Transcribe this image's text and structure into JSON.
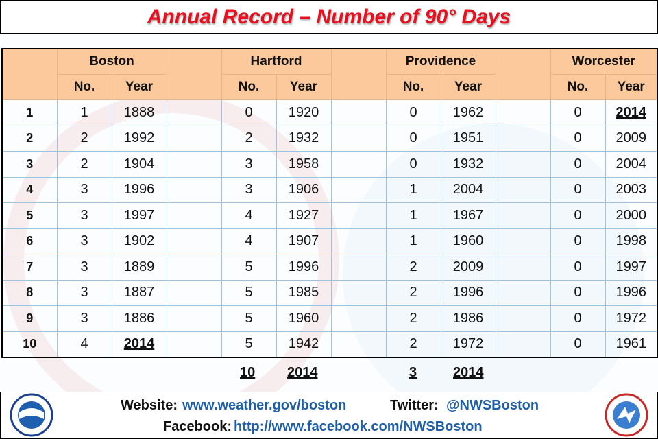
{
  "header": {
    "title": "Annual Record – Number of 90° Days"
  },
  "table": {
    "cities": [
      {
        "name": "Boston",
        "no_label": "No.",
        "year_label": "Year"
      },
      {
        "name": "Hartford",
        "no_label": "No.",
        "year_label": "Year"
      },
      {
        "name": "Providence",
        "no_label": "No.",
        "year_label": "Year"
      },
      {
        "name": "Worcester",
        "no_label": "No.",
        "year_label": "Year"
      }
    ],
    "rows": [
      [
        1,
        1,
        1888,
        0,
        1920,
        0,
        1962,
        0,
        2014
      ],
      [
        2,
        2,
        1992,
        2,
        1932,
        0,
        1951,
        0,
        2009
      ],
      [
        3,
        2,
        1904,
        3,
        1958,
        0,
        1932,
        0,
        2004
      ],
      [
        4,
        3,
        1996,
        3,
        1906,
        1,
        2004,
        0,
        2003
      ],
      [
        5,
        3,
        1997,
        4,
        1927,
        1,
        1967,
        0,
        2000
      ],
      [
        6,
        3,
        1902,
        4,
        1907,
        1,
        1960,
        0,
        1998
      ],
      [
        7,
        3,
        1889,
        5,
        1996,
        2,
        2009,
        0,
        1997
      ],
      [
        8,
        3,
        1887,
        5,
        1985,
        2,
        1996,
        0,
        1996
      ],
      [
        9,
        3,
        1886,
        5,
        1960,
        2,
        1986,
        0,
        1972
      ],
      [
        10,
        4,
        2014,
        5,
        1942,
        2,
        1972,
        0,
        1961
      ]
    ],
    "current": [
      {
        "no": 10,
        "year": 2014
      },
      {
        "no": 3,
        "year": 2014
      }
    ]
  },
  "footer": {
    "website_label": "Website:",
    "website": "www.weather.gov/boston",
    "twitter_label": "Twitter:",
    "twitter": "@NWSBoston",
    "facebook_label": "Facebook:",
    "facebook": "http://www.facebook.com/NWSBoston"
  }
}
